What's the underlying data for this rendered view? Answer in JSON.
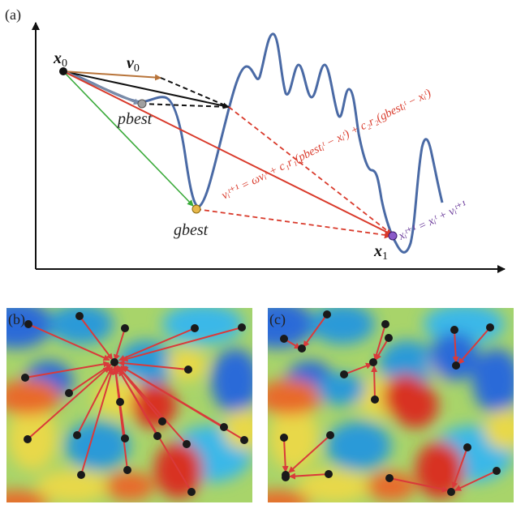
{
  "panel_a": {
    "label": "(a)",
    "x0": {
      "main": "x",
      "sub": "0"
    },
    "x1": {
      "main": "x",
      "sub": "1"
    },
    "v0": {
      "main": "v",
      "sub": "0"
    },
    "pbest": "pbest",
    "gbest": "gbest",
    "velocity_eq": "vᵢᵗ⁺¹ = ωvᵢᵗ + c₁r₁(pbestᵢᵗ − xᵢᵗ) + c₂r₂(gbestᵢᵗ − xᵢᵗ)",
    "position_eq": "xᵢᵗ⁺¹ = xᵢᵗ + vᵢᵗ⁺¹",
    "colors": {
      "curve": "#4a6aa5",
      "velocity": "#b8743a",
      "personal": "#7a8ca8",
      "social": "#3aaa3a",
      "update": "#d93a2b",
      "inertia": "#111111",
      "position_eq": "#6a3a9a",
      "pbest_dot": "#a0a0a0",
      "gbest_dot": "#e8b84a",
      "x1_dot": "#8a5ac8"
    }
  },
  "panel_b": {
    "label": "(b)",
    "topology": "global-best"
  },
  "panel_c": {
    "label": "(c)",
    "topology": "local-best"
  },
  "arrow_color": "#d93a3a",
  "particle_color": "#1a1a1a"
}
